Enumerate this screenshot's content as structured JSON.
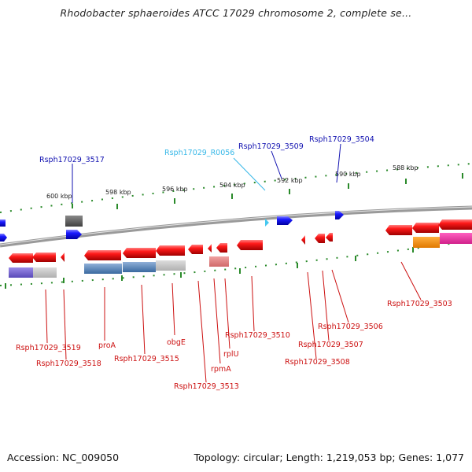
{
  "title": "Rhodobacter sphaeroides ATCC 17029 chromosome 2, complete se...",
  "footer": {
    "accession": "Accession: NC_009050",
    "topology": "Topology: circular; Length: 1,219,053 bp; Genes: 1,077"
  },
  "colors": {
    "forward_gene": "#1e1ef0",
    "reverse_gene": "#f01010",
    "rna_gene": "#46c8f0",
    "label_forward": "#1010b0",
    "label_reverse": "#cc1010",
    "label_rna": "#38b8e8",
    "tick": "#2a8a2a",
    "backbone": "#808080"
  },
  "ticks": [
    "600 kbp",
    "598 kbp",
    "596 kbp",
    "594 kbp",
    "592 kbp",
    "590 kbp",
    "588 kbp"
  ],
  "labels": {
    "rsph_3517": "Rsph17029_3517",
    "rsph_r0056": "Rsph17029_R0056",
    "rsph_3509": "Rsph17029_3509",
    "rsph_3504": "Rsph17029_3504",
    "rsph_3519": "Rsph17029_3519",
    "rsph_3518": "Rsph17029_3518",
    "proa": "proA",
    "rsph_3515": "Rsph17029_3515",
    "obge": "obgE",
    "rsph_3513": "Rsph17029_3513",
    "rpma": "rpmA",
    "rplu": "rplU",
    "rsph_3510": "Rsph17029_3510",
    "rsph_3507": "Rsph17029_3507",
    "rsph_3508": "Rsph17029_3508",
    "rsph_3506": "Rsph17029_3506",
    "rsph_3503": "Rsph17029_3503"
  }
}
